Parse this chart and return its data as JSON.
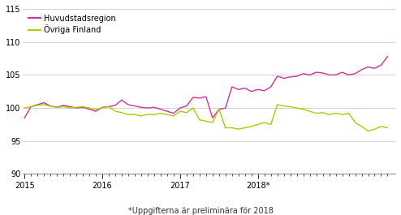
{
  "footnote": "*Uppgifterna är preliminära för 2018",
  "legend_huvudstad": "Huvudstadsregion",
  "legend_ovriga": "Övriga Finland",
  "color_huvudstad": "#cc3399",
  "color_ovriga": "#aacc00",
  "ylim": [
    90,
    115
  ],
  "yticks": [
    90,
    95,
    100,
    105,
    110,
    115
  ],
  "xlabel_ticks_pos": [
    2015,
    2016,
    2017,
    2018
  ],
  "xlabel_ticks_labels": [
    "2015",
    "2016",
    "2017",
    "2018*"
  ],
  "background_color": "#ffffff",
  "grid_color": "#cccccc",
  "huvudstad": [
    98.5,
    100.2,
    100.5,
    100.8,
    100.3,
    100.1,
    100.4,
    100.2,
    100.0,
    100.1,
    99.8,
    99.5,
    100.1,
    100.2,
    100.4,
    101.2,
    100.5,
    100.3,
    100.1,
    100.0,
    100.1,
    99.8,
    99.5,
    99.2,
    100.0,
    100.3,
    101.6,
    101.5,
    101.7,
    98.5,
    99.8,
    100.0,
    103.2,
    102.8,
    103.0,
    102.5,
    102.8,
    102.6,
    103.2,
    104.8,
    104.5,
    104.7,
    104.8,
    105.2,
    105.0,
    105.4,
    105.3,
    105.0,
    105.0,
    105.4,
    105.0,
    105.2,
    105.8,
    106.2,
    106.0,
    106.5,
    107.8
  ],
  "ovriga": [
    100.0,
    100.2,
    100.4,
    100.5,
    100.3,
    100.1,
    100.2,
    100.0,
    100.1,
    100.2,
    100.0,
    99.8,
    100.0,
    100.2,
    99.5,
    99.3,
    99.0,
    99.0,
    98.8,
    99.0,
    99.0,
    99.2,
    99.0,
    98.8,
    99.5,
    99.3,
    100.0,
    98.2,
    98.0,
    97.8,
    99.8,
    97.0,
    97.0,
    96.8,
    97.0,
    97.2,
    97.5,
    97.8,
    97.5,
    100.5,
    100.3,
    100.2,
    100.0,
    99.8,
    99.5,
    99.2,
    99.3,
    99.0,
    99.2,
    99.0,
    99.2,
    97.8,
    97.2,
    96.5,
    96.8,
    97.2,
    97.0
  ],
  "n_months": 57,
  "x_start_year": 2015,
  "linewidth": 1.0
}
